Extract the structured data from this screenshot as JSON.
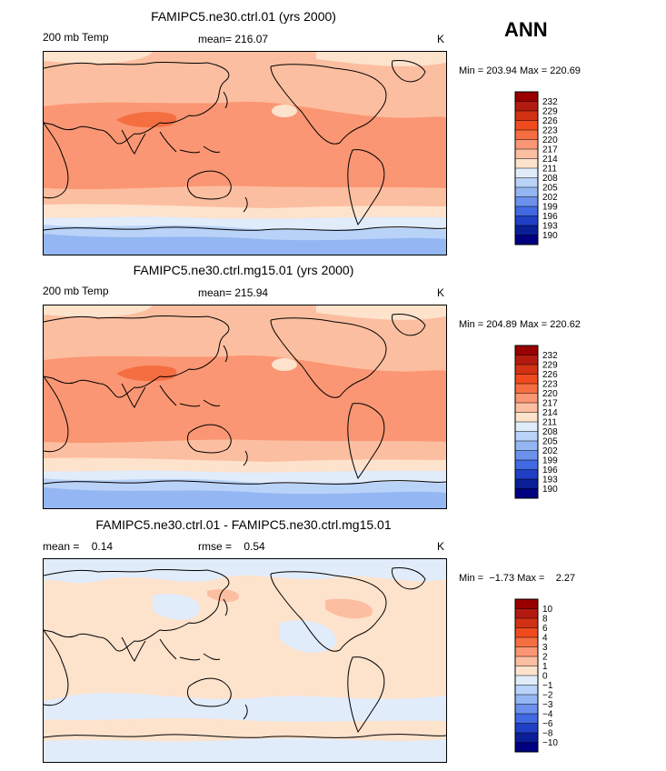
{
  "season": "ANN",
  "panels": [
    {
      "title": "FAMIPC5.ne30.ctrl.01 (yrs 2000)",
      "left_label": "200 mb Temp",
      "center_label": "mean= 216.07",
      "units": "K",
      "minmax": "Min = 203.94 Max = 220.69",
      "levels": [
        "232",
        "229",
        "226",
        "223",
        "220",
        "217",
        "214",
        "211",
        "208",
        "205",
        "202",
        "199",
        "196",
        "193",
        "190"
      ],
      "colors": [
        "#990000",
        "#b41b10",
        "#d23214",
        "#f04b1e",
        "#f56e41",
        "#fa9673",
        "#fcbea0",
        "#fde2cc",
        "#e1ecfb",
        "#b9d2f8",
        "#94b6f2",
        "#6b91ec",
        "#4169e1",
        "#1f3fc4",
        "#0a1e96",
        "#000080"
      ],
      "field": "abs"
    },
    {
      "title": "FAMIPC5.ne30.ctrl.mg15.01 (yrs 2000)",
      "left_label": "200 mb Temp",
      "center_label": "mean= 215.94",
      "units": "K",
      "minmax": "Min = 204.89 Max = 220.62",
      "levels": [
        "232",
        "229",
        "226",
        "223",
        "220",
        "217",
        "214",
        "211",
        "208",
        "205",
        "202",
        "199",
        "196",
        "193",
        "190"
      ],
      "colors": [
        "#990000",
        "#b41b10",
        "#d23214",
        "#f04b1e",
        "#f56e41",
        "#fa9673",
        "#fcbea0",
        "#fde2cc",
        "#e1ecfb",
        "#b9d2f8",
        "#94b6f2",
        "#6b91ec",
        "#4169e1",
        "#1f3fc4",
        "#0a1e96",
        "#000080"
      ],
      "field": "abs"
    },
    {
      "title": "FAMIPC5.ne30.ctrl.01 - FAMIPC5.ne30.ctrl.mg15.01",
      "left_label": "mean =    0.14",
      "center_label": "rmse =    0.54",
      "units": "K",
      "minmax": "Min =  −1.73 Max =    2.27",
      "levels": [
        "10",
        "8",
        "6",
        "4",
        "3",
        "2",
        "1",
        "0",
        "−1",
        "−2",
        "−3",
        "−4",
        "−6",
        "−8",
        "−10"
      ],
      "colors": [
        "#990000",
        "#b41b10",
        "#d23214",
        "#f04b1e",
        "#f56e41",
        "#fa9673",
        "#fcbea0",
        "#fde2cc",
        "#e1ecfb",
        "#b9d2f8",
        "#94b6f2",
        "#6b91ec",
        "#4169e1",
        "#1f3fc4",
        "#0a1e96",
        "#000080"
      ],
      "field": "diff"
    }
  ]
}
